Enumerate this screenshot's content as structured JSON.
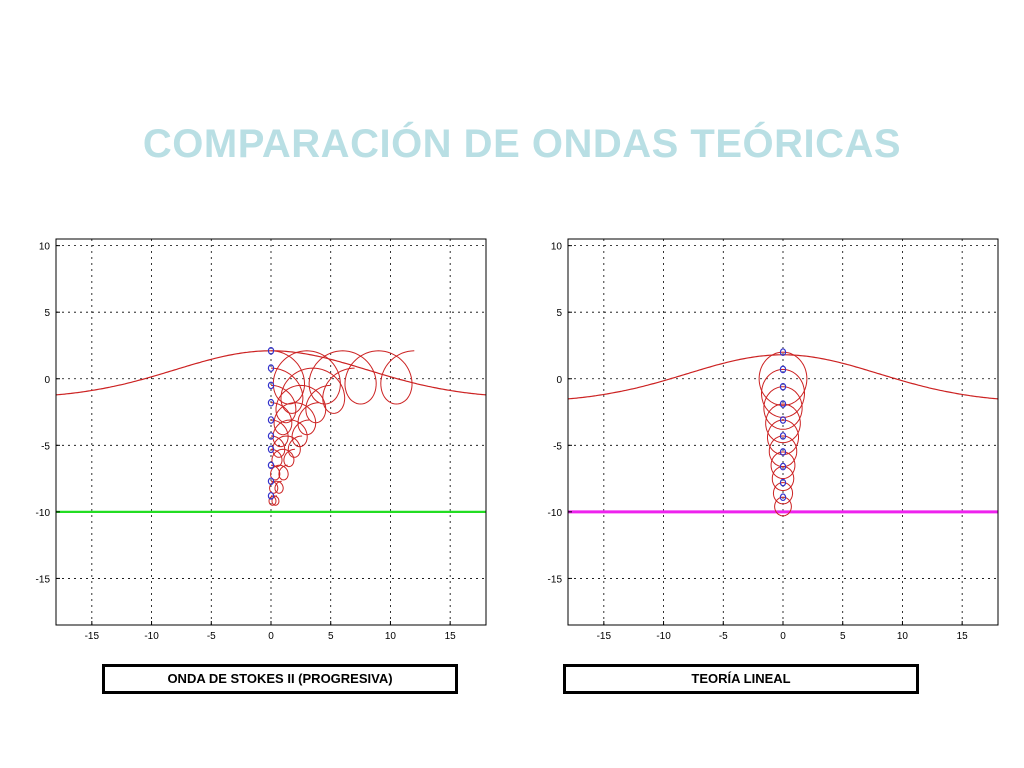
{
  "slide": {
    "title": "COMPARACIÓN DE ONDAS TEÓRICAS"
  },
  "chart_data": [
    {
      "type": "line",
      "caption": "ONDA DE STOKES II (PROGRESIVA)",
      "title": "",
      "xlabel": "",
      "ylabel": "",
      "xlim": [
        -18,
        18
      ],
      "ylim": [
        -18.5,
        10.5
      ],
      "x_ticks": [
        -15,
        -10,
        -5,
        0,
        5,
        10,
        15
      ],
      "y_ticks": [
        10,
        5,
        0,
        -5,
        -10,
        -15
      ],
      "grid": true,
      "bottom_line": {
        "y": -10,
        "color": "#22dd22"
      },
      "wave": {
        "amplitude": 2.0,
        "offset": 0.45,
        "sigma": 8.0,
        "color": "#cc2222"
      },
      "particles": {
        "color": "#3333cc",
        "y": [
          2.1,
          0.8,
          -0.5,
          -1.8,
          -3.1,
          -4.3,
          -5.3,
          -6.5,
          -7.7,
          -8.8
        ],
        "orbit_radius": [
          2.0,
          1.7,
          1.4,
          1.2,
          1.0,
          0.8,
          0.65,
          0.55,
          0.45,
          0.35
        ],
        "drift": [
          12.0,
          7.0,
          5.0,
          4.0,
          3.2,
          2.6,
          2.0,
          1.4,
          0.9,
          0.5
        ]
      },
      "line_color": "#cc2222"
    },
    {
      "type": "line",
      "caption": "TEORÍA LINEAL",
      "title": "",
      "xlabel": "",
      "ylabel": "",
      "xlim": [
        -18,
        18
      ],
      "ylim": [
        -18.5,
        10.5
      ],
      "x_ticks": [
        -15,
        -10,
        -5,
        0,
        5,
        10,
        15
      ],
      "y_ticks": [
        10,
        5,
        0,
        -5,
        -10,
        -15
      ],
      "grid": true,
      "bottom_line": {
        "y": -10,
        "color": "#ee22ee"
      },
      "wave": {
        "amplitude": 2.0,
        "offset": 0.0,
        "sigma": 8.0,
        "color": "#cc2222"
      },
      "particles": {
        "color": "#3333cc",
        "y": [
          2.0,
          0.7,
          -0.6,
          -1.9,
          -3.1,
          -4.3,
          -5.5,
          -6.6,
          -7.8,
          -8.9
        ],
        "orbit_radius": [
          2.0,
          1.8,
          1.6,
          1.45,
          1.3,
          1.15,
          1.0,
          0.9,
          0.8,
          0.7
        ]
      },
      "line_color": "#cc2222"
    }
  ]
}
